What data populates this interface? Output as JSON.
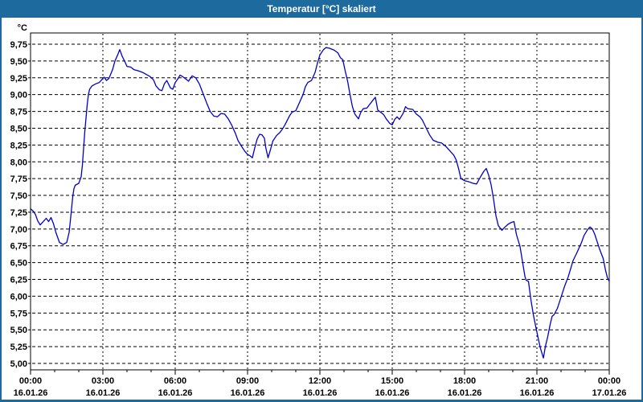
{
  "window": {
    "title": "Temperatur [°C] skaliert",
    "frame_color": "#1d6a9e",
    "titlebar_text_color": "#ffffff",
    "background_color": "#ffffff"
  },
  "chart_data": {
    "type": "line",
    "title": "Temperatur [°C] skaliert",
    "unit_label": "°C",
    "grid": true,
    "legend": "none",
    "line_color": "#0000cc",
    "grid_color": "#000000",
    "ylim": [
      4.9,
      9.92
    ],
    "xlim_hours": [
      0,
      24
    ],
    "y_ticks": [
      {
        "value": 9.75,
        "label": "9,75"
      },
      {
        "value": 9.5,
        "label": "9,50"
      },
      {
        "value": 9.25,
        "label": "9,25"
      },
      {
        "value": 9.0,
        "label": "9,00"
      },
      {
        "value": 8.75,
        "label": "8,75"
      },
      {
        "value": 8.5,
        "label": "8,50"
      },
      {
        "value": 8.25,
        "label": "8,25"
      },
      {
        "value": 8.0,
        "label": "8,00"
      },
      {
        "value": 7.75,
        "label": "7,75"
      },
      {
        "value": 7.5,
        "label": "7,50"
      },
      {
        "value": 7.25,
        "label": "7,25"
      },
      {
        "value": 7.0,
        "label": "7,00"
      },
      {
        "value": 6.75,
        "label": "6,75"
      },
      {
        "value": 6.5,
        "label": "6,50"
      },
      {
        "value": 6.25,
        "label": "6,25"
      },
      {
        "value": 6.0,
        "label": "6,00"
      },
      {
        "value": 5.75,
        "label": "5,75"
      },
      {
        "value": 5.5,
        "label": "5,50"
      },
      {
        "value": 5.25,
        "label": "5,25"
      },
      {
        "value": 5.0,
        "label": "5,00"
      }
    ],
    "x_major_ticks": [
      {
        "hour": 0,
        "time": "00:00",
        "date": "16.01.26"
      },
      {
        "hour": 3,
        "time": "03:00",
        "date": "16.01.26"
      },
      {
        "hour": 6,
        "time": "06:00",
        "date": "16.01.26"
      },
      {
        "hour": 9,
        "time": "09:00",
        "date": "16.01.26"
      },
      {
        "hour": 12,
        "time": "12:00",
        "date": "16.01.26"
      },
      {
        "hour": 15,
        "time": "15:00",
        "date": "16.01.26"
      },
      {
        "hour": 18,
        "time": "18:00",
        "date": "16.01.26"
      },
      {
        "hour": 21,
        "time": "21:00",
        "date": "16.01.26"
      },
      {
        "hour": 24,
        "time": "00:00",
        "date": "17.01.26"
      }
    ],
    "x_minor_tick_hours": 1,
    "series": [
      {
        "name": "Temperatur",
        "points": [
          [
            0.0,
            7.3
          ],
          [
            0.1,
            7.27
          ],
          [
            0.2,
            7.22
          ],
          [
            0.3,
            7.12
          ],
          [
            0.4,
            7.06
          ],
          [
            0.55,
            7.12
          ],
          [
            0.65,
            7.16
          ],
          [
            0.75,
            7.11
          ],
          [
            0.85,
            7.17
          ],
          [
            0.95,
            7.08
          ],
          [
            1.05,
            6.95
          ],
          [
            1.2,
            6.8
          ],
          [
            1.35,
            6.77
          ],
          [
            1.5,
            6.8
          ],
          [
            1.6,
            6.95
          ],
          [
            1.65,
            7.12
          ],
          [
            1.7,
            7.3
          ],
          [
            1.75,
            7.48
          ],
          [
            1.8,
            7.6
          ],
          [
            1.85,
            7.65
          ],
          [
            2.0,
            7.68
          ],
          [
            2.1,
            7.78
          ],
          [
            2.15,
            7.95
          ],
          [
            2.2,
            8.2
          ],
          [
            2.25,
            8.45
          ],
          [
            2.3,
            8.65
          ],
          [
            2.35,
            8.85
          ],
          [
            2.4,
            9.0
          ],
          [
            2.45,
            9.08
          ],
          [
            2.55,
            9.13
          ],
          [
            2.7,
            9.16
          ],
          [
            2.85,
            9.18
          ],
          [
            2.95,
            9.22
          ],
          [
            3.05,
            9.26
          ],
          [
            3.15,
            9.21
          ],
          [
            3.25,
            9.24
          ],
          [
            3.4,
            9.37
          ],
          [
            3.5,
            9.5
          ],
          [
            3.6,
            9.58
          ],
          [
            3.7,
            9.67
          ],
          [
            3.8,
            9.57
          ],
          [
            3.9,
            9.5
          ],
          [
            4.0,
            9.42
          ],
          [
            4.15,
            9.41
          ],
          [
            4.3,
            9.37
          ],
          [
            4.5,
            9.35
          ],
          [
            4.65,
            9.33
          ],
          [
            4.8,
            9.3
          ],
          [
            4.95,
            9.27
          ],
          [
            5.1,
            9.22
          ],
          [
            5.2,
            9.13
          ],
          [
            5.35,
            9.07
          ],
          [
            5.45,
            9.06
          ],
          [
            5.55,
            9.16
          ],
          [
            5.65,
            9.21
          ],
          [
            5.8,
            9.1
          ],
          [
            5.9,
            9.08
          ],
          [
            6.0,
            9.18
          ],
          [
            6.1,
            9.23
          ],
          [
            6.2,
            9.29
          ],
          [
            6.3,
            9.27
          ],
          [
            6.45,
            9.23
          ],
          [
            6.55,
            9.2
          ],
          [
            6.7,
            9.28
          ],
          [
            6.85,
            9.25
          ],
          [
            7.0,
            9.16
          ],
          [
            7.15,
            9.02
          ],
          [
            7.3,
            8.88
          ],
          [
            7.45,
            8.75
          ],
          [
            7.6,
            8.68
          ],
          [
            7.75,
            8.67
          ],
          [
            7.9,
            8.72
          ],
          [
            8.05,
            8.71
          ],
          [
            8.2,
            8.64
          ],
          [
            8.35,
            8.54
          ],
          [
            8.5,
            8.42
          ],
          [
            8.6,
            8.32
          ],
          [
            8.75,
            8.23
          ],
          [
            8.9,
            8.15
          ],
          [
            9.0,
            8.11
          ],
          [
            9.1,
            8.09
          ],
          [
            9.2,
            8.06
          ],
          [
            9.3,
            8.21
          ],
          [
            9.4,
            8.34
          ],
          [
            9.5,
            8.41
          ],
          [
            9.6,
            8.4
          ],
          [
            9.7,
            8.35
          ],
          [
            9.75,
            8.22
          ],
          [
            9.85,
            8.06
          ],
          [
            9.95,
            8.18
          ],
          [
            10.05,
            8.31
          ],
          [
            10.2,
            8.39
          ],
          [
            10.35,
            8.44
          ],
          [
            10.45,
            8.49
          ],
          [
            10.55,
            8.55
          ],
          [
            10.65,
            8.62
          ],
          [
            10.75,
            8.69
          ],
          [
            10.85,
            8.74
          ],
          [
            11.0,
            8.76
          ],
          [
            11.1,
            8.84
          ],
          [
            11.2,
            8.92
          ],
          [
            11.3,
            9.0
          ],
          [
            11.4,
            9.12
          ],
          [
            11.5,
            9.18
          ],
          [
            11.65,
            9.21
          ],
          [
            11.8,
            9.33
          ],
          [
            11.9,
            9.47
          ],
          [
            12.0,
            9.59
          ],
          [
            12.15,
            9.67
          ],
          [
            12.25,
            9.7
          ],
          [
            12.4,
            9.69
          ],
          [
            12.6,
            9.66
          ],
          [
            12.75,
            9.62
          ],
          [
            12.85,
            9.55
          ],
          [
            12.95,
            9.52
          ],
          [
            13.05,
            9.35
          ],
          [
            13.15,
            9.2
          ],
          [
            13.25,
            9.0
          ],
          [
            13.35,
            8.82
          ],
          [
            13.45,
            8.71
          ],
          [
            13.6,
            8.64
          ],
          [
            13.7,
            8.74
          ],
          [
            13.8,
            8.79
          ],
          [
            13.95,
            8.8
          ],
          [
            14.1,
            8.87
          ],
          [
            14.25,
            8.94
          ],
          [
            14.3,
            8.96
          ],
          [
            14.4,
            8.77
          ],
          [
            14.55,
            8.73
          ],
          [
            14.65,
            8.7
          ],
          [
            14.75,
            8.64
          ],
          [
            14.9,
            8.57
          ],
          [
            15.0,
            8.55
          ],
          [
            15.1,
            8.63
          ],
          [
            15.2,
            8.67
          ],
          [
            15.3,
            8.63
          ],
          [
            15.45,
            8.72
          ],
          [
            15.55,
            8.82
          ],
          [
            15.65,
            8.79
          ],
          [
            15.85,
            8.78
          ],
          [
            16.0,
            8.71
          ],
          [
            16.15,
            8.67
          ],
          [
            16.25,
            8.62
          ],
          [
            16.4,
            8.51
          ],
          [
            16.55,
            8.4
          ],
          [
            16.7,
            8.32
          ],
          [
            16.9,
            8.29
          ],
          [
            17.05,
            8.28
          ],
          [
            17.25,
            8.22
          ],
          [
            17.4,
            8.16
          ],
          [
            17.55,
            8.1
          ],
          [
            17.65,
            8.03
          ],
          [
            17.75,
            7.9
          ],
          [
            17.85,
            7.75
          ],
          [
            18.0,
            7.72
          ],
          [
            18.2,
            7.7
          ],
          [
            18.35,
            7.68
          ],
          [
            18.5,
            7.67
          ],
          [
            18.65,
            7.77
          ],
          [
            18.8,
            7.86
          ],
          [
            18.9,
            7.9
          ],
          [
            19.0,
            7.8
          ],
          [
            19.1,
            7.66
          ],
          [
            19.2,
            7.45
          ],
          [
            19.3,
            7.2
          ],
          [
            19.4,
            7.05
          ],
          [
            19.55,
            6.98
          ],
          [
            19.65,
            7.02
          ],
          [
            19.8,
            7.07
          ],
          [
            19.95,
            7.1
          ],
          [
            20.05,
            7.11
          ],
          [
            20.15,
            6.92
          ],
          [
            20.3,
            6.74
          ],
          [
            20.4,
            6.52
          ],
          [
            20.5,
            6.3
          ],
          [
            20.55,
            6.24
          ],
          [
            20.65,
            6.22
          ],
          [
            20.75,
            5.95
          ],
          [
            20.85,
            5.73
          ],
          [
            20.95,
            5.55
          ],
          [
            21.05,
            5.38
          ],
          [
            21.15,
            5.22
          ],
          [
            21.27,
            5.08
          ],
          [
            21.35,
            5.25
          ],
          [
            21.45,
            5.4
          ],
          [
            21.55,
            5.58
          ],
          [
            21.63,
            5.7
          ],
          [
            21.72,
            5.73
          ],
          [
            21.85,
            5.82
          ],
          [
            21.95,
            5.93
          ],
          [
            22.05,
            6.04
          ],
          [
            22.15,
            6.15
          ],
          [
            22.3,
            6.29
          ],
          [
            22.4,
            6.41
          ],
          [
            22.5,
            6.53
          ],
          [
            22.65,
            6.64
          ],
          [
            22.75,
            6.72
          ],
          [
            22.85,
            6.8
          ],
          [
            22.95,
            6.9
          ],
          [
            23.1,
            6.99
          ],
          [
            23.2,
            7.03
          ],
          [
            23.3,
            7.0
          ],
          [
            23.4,
            6.92
          ],
          [
            23.5,
            6.81
          ],
          [
            23.6,
            6.7
          ],
          [
            23.75,
            6.56
          ],
          [
            23.85,
            6.38
          ],
          [
            23.93,
            6.27
          ],
          [
            24.0,
            6.22
          ]
        ]
      }
    ]
  }
}
